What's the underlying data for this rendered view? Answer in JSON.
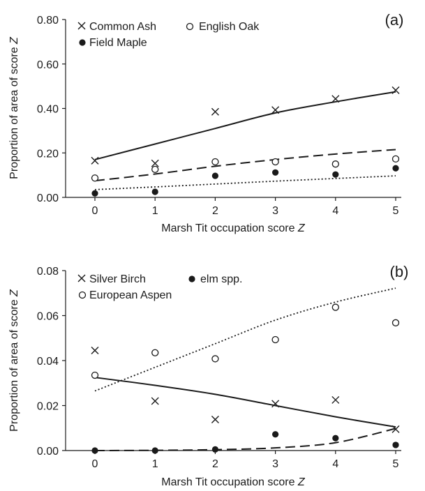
{
  "chart_data": [
    {
      "type": "scatter",
      "panel_label": "(a)",
      "x_label_prefix": "Marsh Tit occupation score ",
      "x_label_var": "Z",
      "y_label_prefix": "Proportion of area of score ",
      "y_label_var": "Z",
      "xlim": [
        0,
        5
      ],
      "ylim": [
        0,
        0.8
      ],
      "x_ticks": [
        "0",
        "1",
        "2",
        "3",
        "4",
        "5"
      ],
      "y_ticks": [
        "0.00",
        "0.20",
        "0.40",
        "0.60",
        "0.80"
      ],
      "grid": false,
      "legend_position": "top-left",
      "series": [
        {
          "name": "Common Ash",
          "marker": "cross",
          "line_style": "solid",
          "x": [
            0,
            1,
            2,
            3,
            4,
            5
          ],
          "y": [
            0.165,
            0.153,
            0.385,
            0.393,
            0.443,
            0.482
          ],
          "fit": [
            0.17,
            0.24,
            0.31,
            0.38,
            0.43,
            0.475
          ]
        },
        {
          "name": "English Oak",
          "marker": "open-circle",
          "line_style": "long-dash",
          "x": [
            0,
            1,
            2,
            3,
            4,
            5
          ],
          "y": [
            0.087,
            0.126,
            0.16,
            0.16,
            0.15,
            0.173
          ],
          "fit": [
            0.075,
            0.105,
            0.14,
            0.17,
            0.195,
            0.215
          ]
        },
        {
          "name": "Field Maple",
          "marker": "filled-circle",
          "line_style": "dotted",
          "x": [
            0,
            1,
            2,
            3,
            4,
            5
          ],
          "y": [
            0.018,
            0.025,
            0.097,
            0.112,
            0.103,
            0.131
          ],
          "fit": [
            0.035,
            0.047,
            0.06,
            0.073,
            0.085,
            0.097
          ]
        }
      ]
    },
    {
      "type": "scatter",
      "panel_label": "(b)",
      "x_label_prefix": "Marsh Tit occupation score ",
      "x_label_var": "Z",
      "y_label_prefix": "Proportion of area of score ",
      "y_label_var": "Z",
      "xlim": [
        0,
        5
      ],
      "ylim": [
        0,
        0.08
      ],
      "x_ticks": [
        "0",
        "1",
        "2",
        "3",
        "4",
        "5"
      ],
      "y_ticks": [
        "0.00",
        "0.02",
        "0.04",
        "0.06",
        "0.08"
      ],
      "grid": false,
      "legend_position": "top-left",
      "series": [
        {
          "name": "Silver Birch",
          "marker": "cross",
          "line_style": "solid",
          "x": [
            0,
            1,
            2,
            3,
            4,
            5
          ],
          "y": [
            0.0445,
            0.022,
            0.0138,
            0.0208,
            0.0225,
            0.0095
          ],
          "fit": [
            0.0325,
            0.029,
            0.025,
            0.02,
            0.015,
            0.0105
          ]
        },
        {
          "name": "elm spp.",
          "marker": "filled-circle",
          "line_style": "long-dash",
          "x": [
            0,
            1,
            2,
            3,
            4,
            5
          ],
          "y": [
            0.0,
            0.0,
            0.0005,
            0.0072,
            0.0055,
            0.0025
          ],
          "fit": [
            0.0,
            0.0001,
            0.0004,
            0.0012,
            0.0035,
            0.0098
          ]
        },
        {
          "name": "European Aspen",
          "marker": "open-circle",
          "line_style": "dotted",
          "x": [
            0,
            1,
            2,
            3,
            4,
            5
          ],
          "y": [
            0.0335,
            0.0435,
            0.0408,
            0.0493,
            0.0637,
            0.0568
          ],
          "fit": [
            0.0265,
            0.037,
            0.0475,
            0.058,
            0.066,
            0.0722
          ]
        }
      ]
    }
  ]
}
